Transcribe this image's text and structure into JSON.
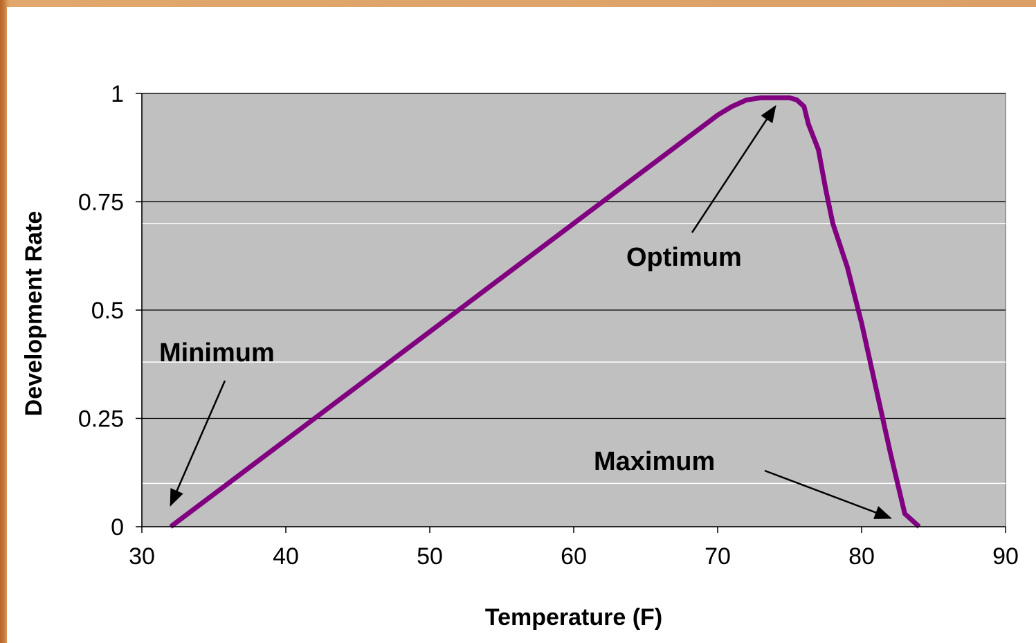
{
  "chart_data": {
    "type": "line",
    "title": "",
    "xlabel": "Temperature (F)",
    "ylabel": "Development Rate",
    "xlim": [
      30,
      90
    ],
    "ylim": [
      0,
      1
    ],
    "x_ticks": [
      "30",
      "40",
      "50",
      "60",
      "70",
      "80",
      "90"
    ],
    "y_ticks": [
      "0",
      "0.25",
      "0.5",
      "0.75",
      "1"
    ],
    "grid": true,
    "legend": "none",
    "colors": {
      "line": "#800080",
      "plot_bg": "#c0c0c0",
      "gridline": "#000000",
      "faint_gridline": "#ffffff"
    },
    "series": [
      {
        "x": [
          32,
          34,
          36,
          38,
          40,
          42,
          44,
          46,
          48,
          50,
          52,
          54,
          56,
          58,
          60,
          62,
          64,
          66,
          68,
          70,
          71,
          72,
          73,
          74,
          75,
          75.5,
          76,
          76.3,
          77,
          77.5,
          78,
          79,
          80,
          81,
          82,
          83,
          84
        ],
        "y": [
          0,
          0.05,
          0.1,
          0.15,
          0.2,
          0.25,
          0.3,
          0.35,
          0.4,
          0.45,
          0.5,
          0.55,
          0.6,
          0.65,
          0.7,
          0.75,
          0.8,
          0.85,
          0.9,
          0.95,
          0.97,
          0.985,
          0.99,
          0.99,
          0.99,
          0.985,
          0.97,
          0.93,
          0.87,
          0.78,
          0.7,
          0.6,
          0.47,
          0.32,
          0.17,
          0.03,
          0
        ]
      }
    ],
    "annotations": [
      {
        "label": "Minimum",
        "target": [
          32,
          0.05
        ]
      },
      {
        "label": "Optimum",
        "target": [
          74,
          0.97
        ]
      },
      {
        "label": "Maximum",
        "target": [
          82,
          0.02
        ]
      }
    ]
  }
}
